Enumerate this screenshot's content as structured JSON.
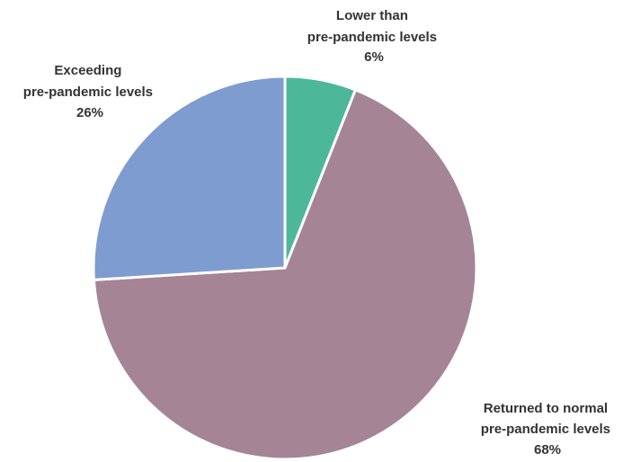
{
  "chart_data": {
    "type": "pie",
    "title": "",
    "slices": [
      {
        "label": "Lower than pre-pandemic levels",
        "label_lines": [
          "Lower than",
          "pre-pandemic levels"
        ],
        "value": 6,
        "value_label": "6%",
        "color": "#4DB899"
      },
      {
        "label": "Returned to normal pre-pandemic levels",
        "label_lines": [
          "Returned to normal",
          "pre-pandemic levels"
        ],
        "value": 68,
        "value_label": "68%",
        "color": "#A58496"
      },
      {
        "label": "Exceeding pre-pandemic levels",
        "label_lines": [
          "Exceeding",
          "pre-pandemic levels"
        ],
        "value": 26,
        "value_label": "26%",
        "color": "#7F9CD1"
      }
    ],
    "start_angle": "12 o'clock",
    "direction": "clockwise",
    "legend": "none"
  }
}
